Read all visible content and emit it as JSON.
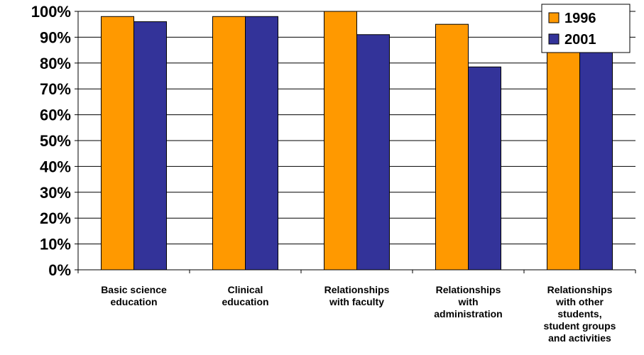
{
  "chart_data": {
    "type": "bar",
    "categories": [
      [
        "Basic science",
        "education"
      ],
      [
        "Clinical",
        "education"
      ],
      [
        "Relationships",
        "with faculty"
      ],
      [
        "Relationships",
        "with",
        "administration"
      ],
      [
        "Relationships",
        "with other",
        "students,",
        "student groups",
        "and activities"
      ]
    ],
    "series": [
      {
        "name": "1996",
        "color": "#FF9900",
        "values": [
          98,
          98,
          100,
          95,
          100
        ]
      },
      {
        "name": "2001",
        "color": "#333399",
        "values": [
          96,
          98,
          91,
          78.5,
          100
        ]
      }
    ],
    "y_ticks": [
      "0%",
      "10%",
      "20%",
      "30%",
      "40%",
      "50%",
      "60%",
      "70%",
      "80%",
      "90%",
      "100%"
    ],
    "ylim": [
      0,
      100
    ],
    "grid": true,
    "legend_position": "top-right"
  }
}
